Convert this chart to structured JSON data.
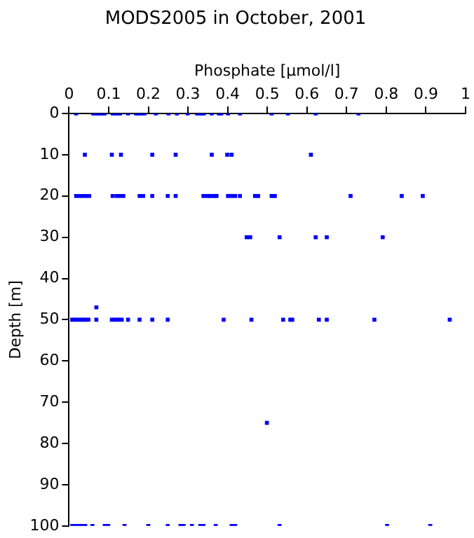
{
  "chart_data": {
    "type": "scatter",
    "title": "MODS2005 in October, 2001",
    "xlabel": "Phosphate [µmol/l]",
    "ylabel": "Depth [m]",
    "x": [
      0.018,
      0.061,
      0.067,
      0.073,
      0.079,
      0.085,
      0.09,
      0.11,
      0.116,
      0.123,
      0.129,
      0.149,
      0.169,
      0.175,
      0.181,
      0.19,
      0.219,
      0.251,
      0.272,
      0.299,
      0.323,
      0.329,
      0.335,
      0.34,
      0.36,
      0.378,
      0.384,
      0.401,
      0.431,
      0.511,
      0.552,
      0.622,
      0.73,
      0.04,
      0.108,
      0.131,
      0.21,
      0.269,
      0.36,
      0.399,
      0.41,
      0.61,
      0.018,
      0.026,
      0.034,
      0.043,
      0.051,
      0.11,
      0.12,
      0.128,
      0.137,
      0.178,
      0.187,
      0.21,
      0.249,
      0.269,
      0.339,
      0.349,
      0.357,
      0.366,
      0.372,
      0.401,
      0.41,
      0.419,
      0.431,
      0.469,
      0.477,
      0.511,
      0.519,
      0.71,
      0.839,
      0.892,
      0.448,
      0.457,
      0.531,
      0.622,
      0.65,
      0.791,
      0.069,
      0.008,
      0.016,
      0.025,
      0.033,
      0.041,
      0.049,
      0.069,
      0.108,
      0.116,
      0.124,
      0.133,
      0.149,
      0.178,
      0.21,
      0.249,
      0.39,
      0.46,
      0.54,
      0.558,
      0.563,
      0.63,
      0.65,
      0.77,
      0.96,
      0.499,
      0.008,
      0.016,
      0.025,
      0.033,
      0.041,
      0.059,
      0.09,
      0.099,
      0.14,
      0.2,
      0.249,
      0.281,
      0.289,
      0.31,
      0.331,
      0.339,
      0.37,
      0.41,
      0.419,
      0.531,
      0.802,
      0.911
    ],
    "values": [
      0,
      0,
      0,
      0,
      0,
      0,
      0,
      0,
      0,
      0,
      0,
      0,
      0,
      0,
      0,
      0,
      0,
      0,
      0,
      0,
      0,
      0,
      0,
      0,
      0,
      0,
      0,
      0,
      0,
      0,
      0,
      0,
      0,
      10,
      10,
      10,
      10,
      10,
      10,
      10,
      10,
      10,
      20,
      20,
      20,
      20,
      20,
      20,
      20,
      20,
      20,
      20,
      20,
      20,
      20,
      20,
      20,
      20,
      20,
      20,
      20,
      20,
      20,
      20,
      20,
      20,
      20,
      20,
      20,
      20,
      20,
      20,
      30,
      30,
      30,
      30,
      30,
      30,
      47,
      50,
      50,
      50,
      50,
      50,
      50,
      50,
      50,
      50,
      50,
      50,
      50,
      50,
      50,
      50,
      50,
      50,
      50,
      50,
      50,
      50,
      50,
      50,
      50,
      75,
      100,
      100,
      100,
      100,
      100,
      100,
      100,
      100,
      100,
      100,
      100,
      100,
      100,
      100,
      100,
      100,
      100,
      100,
      100,
      100,
      100,
      100
    ],
    "color": "#0000ff",
    "marker": "square",
    "grid": false,
    "legend": false,
    "xlim": [
      0,
      1
    ],
    "xticks": [
      0,
      0.1,
      0.2,
      0.3,
      0.4,
      0.5,
      0.6,
      0.7,
      0.8,
      0.9,
      1
    ],
    "ylim": [
      100,
      0
    ],
    "yticks": [
      0,
      10,
      20,
      30,
      40,
      50,
      60,
      70,
      80,
      90,
      100
    ]
  }
}
